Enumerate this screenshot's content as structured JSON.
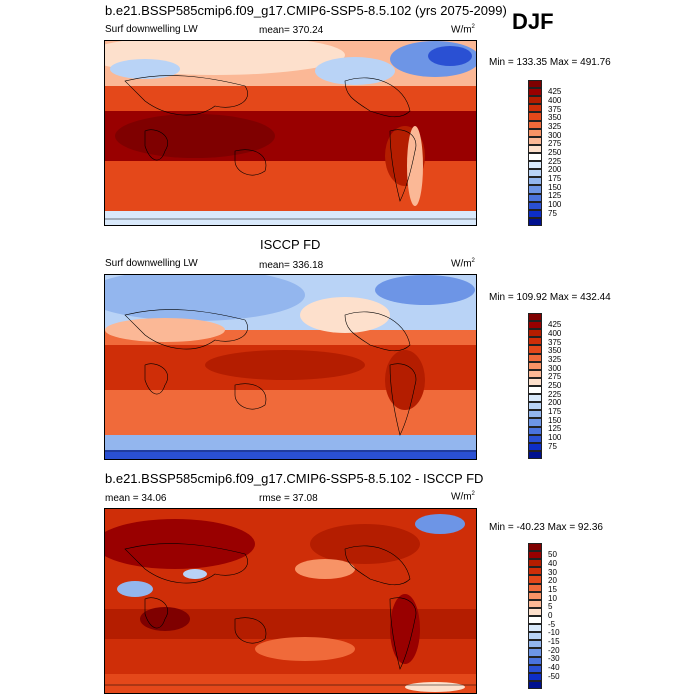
{
  "header": {
    "top_title": "b.e21.BSSP585cmip6.f09_g17.CMIP6-SSP5-8.5.102 (yrs 2075-2099)",
    "season": "DJF"
  },
  "panels": [
    {
      "variable": "Surf downwelling LW",
      "stat_label": "mean=",
      "stat_value": "370.24",
      "units": "W/m",
      "units_exp": "2",
      "minmax": "Min = 133.35 Max = 491.76",
      "colorbar_labels": [
        "425",
        "400",
        "375",
        "350",
        "325",
        "300",
        "275",
        "250",
        "225",
        "200",
        "175",
        "150",
        "125",
        "100",
        "75"
      ],
      "colors": [
        "#7f0000",
        "#990000",
        "#b41d00",
        "#cf2e08",
        "#e4481a",
        "#f06a3a",
        "#f79366",
        "#fbb896",
        "#fde0cc",
        "#ffffff",
        "#d9e9fb",
        "#b9d3f6",
        "#93b6ee",
        "#6d95e6",
        "#4a73dd",
        "#2a50d3",
        "#0d2ec6",
        "#00108e"
      ]
    },
    {
      "title": "ISCCP FD",
      "variable": "Surf downwelling LW",
      "stat_label": "mean=",
      "stat_value": "336.18",
      "units": "W/m",
      "units_exp": "2",
      "minmax": "Min = 109.92 Max = 432.44",
      "colorbar_labels": [
        "425",
        "400",
        "375",
        "350",
        "325",
        "300",
        "275",
        "250",
        "225",
        "200",
        "175",
        "150",
        "125",
        "100",
        "75"
      ],
      "colors": [
        "#7f0000",
        "#990000",
        "#b41d00",
        "#cf2e08",
        "#e4481a",
        "#f06a3a",
        "#f79366",
        "#fbb896",
        "#fde0cc",
        "#ffffff",
        "#d9e9fb",
        "#b9d3f6",
        "#93b6ee",
        "#6d95e6",
        "#4a73dd",
        "#2a50d3",
        "#0d2ec6",
        "#00108e"
      ]
    },
    {
      "title": "b.e21.BSSP585cmip6.f09_g17.CMIP6-SSP5-8.5.102 - ISCCP FD",
      "stat1_label": "mean =",
      "stat1_value": "34.06",
      "stat2_label": "rmse =",
      "stat2_value": "37.08",
      "units": "W/m",
      "units_exp": "2",
      "minmax": "Min = -40.23 Max =  92.36",
      "colorbar_labels": [
        "50",
        "40",
        "30",
        "20",
        "15",
        "10",
        "5",
        "0",
        "-5",
        "-10",
        "-15",
        "-20",
        "-30",
        "-40",
        "-50"
      ],
      "colors": [
        "#7f0000",
        "#990000",
        "#b41d00",
        "#cf2e08",
        "#e4481a",
        "#f06a3a",
        "#f79366",
        "#fbb896",
        "#fde0cc",
        "#ffffff",
        "#d9e9fb",
        "#b9d3f6",
        "#93b6ee",
        "#6d95e6",
        "#4a73dd",
        "#2a50d3",
        "#0d2ec6",
        "#00108e"
      ]
    }
  ]
}
